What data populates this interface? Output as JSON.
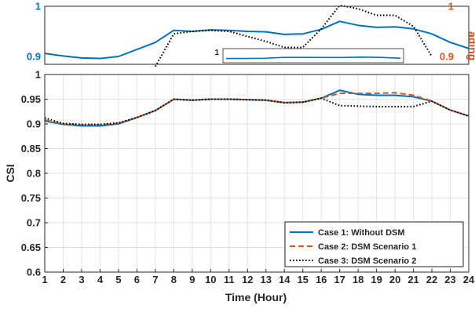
{
  "chart_data": [
    {
      "type": "line",
      "partial": true,
      "x": [
        1,
        2,
        3,
        4,
        5,
        6,
        7,
        8,
        9,
        10,
        11,
        12,
        13,
        14,
        15,
        16,
        17,
        18,
        19,
        20,
        21,
        22,
        23,
        24
      ],
      "ylim": [
        0.9,
        1.0
      ],
      "y_ticks": [
        "1",
        "0.9"
      ],
      "right_y_ticks": [
        "1",
        "0.9"
      ],
      "right_ylabel": "ading",
      "series": [
        {
          "color": "#0072BD",
          "style": "solid",
          "values": [
            0.906,
            0.901,
            0.897,
            0.896,
            0.9,
            0.914,
            0.928,
            0.952,
            0.95,
            0.953,
            0.952,
            0.95,
            0.949,
            0.944,
            0.945,
            0.954,
            0.97,
            0.962,
            0.958,
            0.959,
            0.955,
            0.945,
            0.928,
            0.916
          ]
        },
        {
          "color": "#000000",
          "style": "dotted",
          "values": [
            null,
            null,
            null,
            null,
            null,
            null,
            0.88,
            0.945,
            0.95,
            0.952,
            0.95,
            0.94,
            0.93,
            0.918,
            0.918,
            0.955,
            1.002,
            0.995,
            0.982,
            0.982,
            0.96,
            0.9,
            null,
            null
          ]
        }
      ],
      "inset": {
        "y_tick": "1",
        "series_values": [
          0.93,
          0.93,
          0.932,
          0.938,
          0.938,
          0.937,
          0.937,
          0.94,
          0.938,
          0.932
        ]
      }
    },
    {
      "type": "line",
      "x": [
        1,
        2,
        3,
        4,
        5,
        6,
        7,
        8,
        9,
        10,
        11,
        12,
        13,
        14,
        15,
        16,
        17,
        18,
        19,
        20,
        21,
        22,
        23,
        24
      ],
      "xlim": [
        1,
        24
      ],
      "ylim": [
        0.6,
        1.0
      ],
      "x_ticks": [
        "1",
        "2",
        "3",
        "4",
        "5",
        "6",
        "7",
        "8",
        "9",
        "10",
        "11",
        "12",
        "13",
        "14",
        "15",
        "16",
        "17",
        "18",
        "19",
        "20",
        "21",
        "22",
        "23",
        "24"
      ],
      "y_ticks": [
        "1",
        "0.95",
        "0.9",
        "0.85",
        "0.8",
        "0.75",
        "0.7",
        "0.65",
        "0.6"
      ],
      "xlabel": "Time (Hour)",
      "ylabel": "CSI",
      "grid": true,
      "legend_position": "bottom-right",
      "series": [
        {
          "name": "Case 1: Without DSM",
          "color": "#0072BD",
          "style": "solid",
          "values": [
            0.906,
            0.899,
            0.896,
            0.896,
            0.9,
            0.913,
            0.927,
            0.95,
            0.948,
            0.95,
            0.95,
            0.949,
            0.948,
            0.943,
            0.944,
            0.952,
            0.968,
            0.96,
            0.958,
            0.958,
            0.955,
            0.946,
            0.928,
            0.916
          ]
        },
        {
          "name": "Case 2: DSM Scenario 1",
          "color": "#D95319",
          "style": "dashed",
          "values": [
            0.908,
            0.9,
            0.898,
            0.898,
            0.901,
            0.913,
            0.927,
            0.95,
            0.948,
            0.95,
            0.95,
            0.949,
            0.948,
            0.943,
            0.944,
            0.952,
            0.962,
            0.962,
            0.962,
            0.963,
            0.958,
            0.946,
            0.928,
            0.916
          ]
        },
        {
          "name": "Case 3: DSM Scenario 2",
          "color": "#000000",
          "style": "dotted",
          "values": [
            0.912,
            0.901,
            0.899,
            0.899,
            0.902,
            0.913,
            0.927,
            0.95,
            0.948,
            0.95,
            0.95,
            0.949,
            0.948,
            0.943,
            0.944,
            0.952,
            0.937,
            0.936,
            0.935,
            0.935,
            0.935,
            0.946,
            0.928,
            0.916
          ]
        }
      ]
    }
  ]
}
